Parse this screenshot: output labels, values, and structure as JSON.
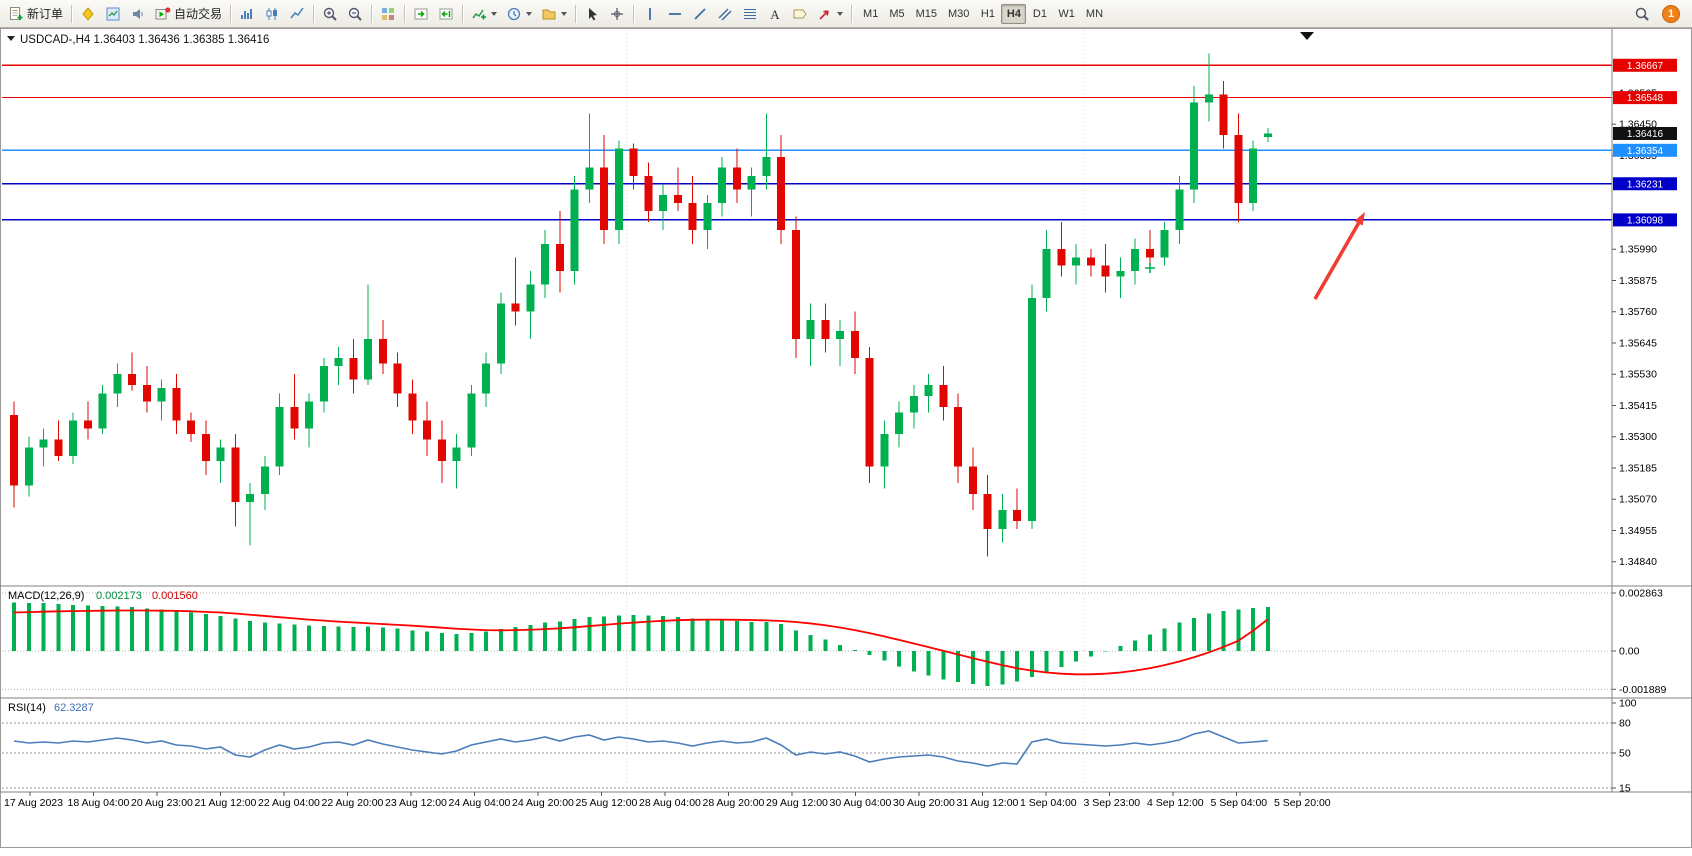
{
  "toolbar": {
    "new_order": "新订单",
    "autotrading": "自动交易",
    "timeframes": [
      "M1",
      "M5",
      "M15",
      "M30",
      "H1",
      "H4",
      "D1",
      "W1",
      "MN"
    ],
    "active_timeframe": "H4",
    "notification_count": "1"
  },
  "chart_data": {
    "type": "candlestick",
    "symbol": "USDCAD-,H4",
    "ohlc_line": {
      "open": "1.36403",
      "high": "1.36436",
      "low": "1.36385",
      "close": "1.36416"
    },
    "price_range": {
      "top": 1.3676,
      "bottom": 1.3478
    },
    "price_ticks": [
      "1.36680",
      "1.36565",
      "1.36450",
      "1.36335",
      "1.36220",
      "1.36105",
      "1.35990",
      "1.35875",
      "1.35760",
      "1.35645",
      "1.35530",
      "1.35415",
      "1.35300",
      "1.35185",
      "1.35070",
      "1.34955",
      "1.34840"
    ],
    "time_labels": [
      "17 Aug 2023",
      "18 Aug 04:00",
      "20 Aug 23:00",
      "21 Aug 12:00",
      "22 Aug 04:00",
      "22 Aug 20:00",
      "23 Aug 12:00",
      "24 Aug 04:00",
      "24 Aug 20:00",
      "25 Aug 12:00",
      "28 Aug 04:00",
      "28 Aug 20:00",
      "29 Aug 12:00",
      "30 Aug 04:00",
      "30 Aug 20:00",
      "31 Aug 12:00",
      "1 Sep 04:00",
      "3 Sep 23:00",
      "4 Sep 12:00",
      "5 Sep 04:00",
      "5 Sep 20:00"
    ],
    "hlines": [
      {
        "price": 1.36667,
        "label": "1.36667",
        "color": "#e60000",
        "width": 1.2
      },
      {
        "price": 1.36548,
        "label": "1.36548",
        "color": "#e60000",
        "width": 1.2
      },
      {
        "price": 1.36354,
        "label": "1.36354",
        "color": "#1e90ff",
        "width": 1.8
      },
      {
        "price": 1.36231,
        "label": "1.36231",
        "color": "#0000c8",
        "width": 1.6
      },
      {
        "price": 1.36098,
        "label": "1.36098",
        "color": "#0000c8",
        "width": 1.6
      }
    ],
    "current_price": {
      "value": 1.36416,
      "label": "1.36416",
      "color": "#111111"
    },
    "colors": {
      "bull": "#00b050",
      "bear": "#e10600",
      "macd_hist": "#00b050",
      "macd_signal": "#ff0000",
      "rsi": "#4a7ebb",
      "annotation": "#f03c32"
    },
    "candles": [
      [
        1.3538,
        1.3543,
        1.3504,
        1.3512
      ],
      [
        1.3512,
        1.353,
        1.3508,
        1.3526
      ],
      [
        1.3526,
        1.3533,
        1.3519,
        1.3529
      ],
      [
        1.3529,
        1.3536,
        1.3521,
        1.3523
      ],
      [
        1.3523,
        1.3539,
        1.352,
        1.3536
      ],
      [
        1.3536,
        1.3543,
        1.3529,
        1.3533
      ],
      [
        1.3533,
        1.3549,
        1.3531,
        1.3546
      ],
      [
        1.3546,
        1.3557,
        1.3541,
        1.3553
      ],
      [
        1.3553,
        1.3561,
        1.3547,
        1.3549
      ],
      [
        1.3549,
        1.3556,
        1.3539,
        1.3543
      ],
      [
        1.3543,
        1.3551,
        1.3536,
        1.3548
      ],
      [
        1.3548,
        1.3553,
        1.3531,
        1.3536
      ],
      [
        1.3536,
        1.3539,
        1.3528,
        1.3531
      ],
      [
        1.3531,
        1.3536,
        1.3516,
        1.3521
      ],
      [
        1.3521,
        1.3529,
        1.3513,
        1.3526
      ],
      [
        1.3526,
        1.3531,
        1.3497,
        1.3506
      ],
      [
        1.3506,
        1.3513,
        1.349,
        1.3509
      ],
      [
        1.3509,
        1.3523,
        1.3503,
        1.3519
      ],
      [
        1.3519,
        1.3546,
        1.3516,
        1.3541
      ],
      [
        1.3541,
        1.3553,
        1.3529,
        1.3533
      ],
      [
        1.3533,
        1.3546,
        1.3526,
        1.3543
      ],
      [
        1.3543,
        1.3559,
        1.3539,
        1.3556
      ],
      [
        1.3556,
        1.3563,
        1.3549,
        1.3559
      ],
      [
        1.3559,
        1.3566,
        1.3546,
        1.3551
      ],
      [
        1.3551,
        1.3586,
        1.3549,
        1.3566
      ],
      [
        1.3566,
        1.3573,
        1.3553,
        1.3557
      ],
      [
        1.3557,
        1.3561,
        1.3541,
        1.3546
      ],
      [
        1.3546,
        1.3551,
        1.3531,
        1.3536
      ],
      [
        1.3536,
        1.3543,
        1.3523,
        1.3529
      ],
      [
        1.3529,
        1.3536,
        1.3513,
        1.3521
      ],
      [
        1.3521,
        1.3531,
        1.3511,
        1.3526
      ],
      [
        1.3526,
        1.3549,
        1.3523,
        1.3546
      ],
      [
        1.3546,
        1.3561,
        1.3541,
        1.3557
      ],
      [
        1.3557,
        1.3583,
        1.3553,
        1.3579
      ],
      [
        1.3579,
        1.3596,
        1.3571,
        1.3576
      ],
      [
        1.3576,
        1.3591,
        1.3566,
        1.3586
      ],
      [
        1.3586,
        1.3606,
        1.3581,
        1.3601
      ],
      [
        1.3601,
        1.3613,
        1.3583,
        1.3591
      ],
      [
        1.3591,
        1.3626,
        1.3586,
        1.3621
      ],
      [
        1.3621,
        1.3649,
        1.3616,
        1.3629
      ],
      [
        1.3629,
        1.3641,
        1.3601,
        1.3606
      ],
      [
        1.3606,
        1.3639,
        1.3601,
        1.3636
      ],
      [
        1.3636,
        1.3638,
        1.3621,
        1.3626
      ],
      [
        1.3626,
        1.3631,
        1.3609,
        1.3613
      ],
      [
        1.3613,
        1.3623,
        1.3606,
        1.3619
      ],
      [
        1.3619,
        1.3629,
        1.3613,
        1.3616
      ],
      [
        1.3616,
        1.3626,
        1.3601,
        1.3606
      ],
      [
        1.3606,
        1.3619,
        1.3599,
        1.3616
      ],
      [
        1.3616,
        1.3633,
        1.3611,
        1.3629
      ],
      [
        1.3629,
        1.3636,
        1.3616,
        1.3621
      ],
      [
        1.3621,
        1.3629,
        1.3611,
        1.3626
      ],
      [
        1.3626,
        1.3649,
        1.3621,
        1.3633
      ],
      [
        1.3633,
        1.3641,
        1.3601,
        1.3606
      ],
      [
        1.3606,
        1.3611,
        1.3559,
        1.3566
      ],
      [
        1.3566,
        1.3579,
        1.3556,
        1.3573
      ],
      [
        1.3573,
        1.3579,
        1.3561,
        1.3566
      ],
      [
        1.3566,
        1.3573,
        1.3556,
        1.3569
      ],
      [
        1.3569,
        1.3576,
        1.3553,
        1.3559
      ],
      [
        1.3559,
        1.3563,
        1.3513,
        1.3519
      ],
      [
        1.3519,
        1.3536,
        1.3511,
        1.3531
      ],
      [
        1.3531,
        1.3543,
        1.3526,
        1.3539
      ],
      [
        1.3539,
        1.3549,
        1.3533,
        1.3545
      ],
      [
        1.3545,
        1.3553,
        1.3539,
        1.3549
      ],
      [
        1.3549,
        1.3556,
        1.3536,
        1.3541
      ],
      [
        1.3541,
        1.3546,
        1.3513,
        1.3519
      ],
      [
        1.3519,
        1.3526,
        1.3503,
        1.3509
      ],
      [
        1.3509,
        1.3516,
        1.3486,
        1.3496
      ],
      [
        1.3496,
        1.3509,
        1.3491,
        1.3503
      ],
      [
        1.3503,
        1.3511,
        1.3496,
        1.3499
      ],
      [
        1.3499,
        1.3586,
        1.3496,
        1.3581
      ],
      [
        1.3581,
        1.3606,
        1.3576,
        1.3599
      ],
      [
        1.3599,
        1.3609,
        1.3589,
        1.3593
      ],
      [
        1.3593,
        1.3601,
        1.3586,
        1.3596
      ],
      [
        1.3596,
        1.3599,
        1.3589,
        1.3593
      ],
      [
        1.3593,
        1.3601,
        1.3583,
        1.3589
      ],
      [
        1.3589,
        1.3596,
        1.3581,
        1.3591
      ],
      [
        1.3591,
        1.3603,
        1.3586,
        1.3599
      ],
      [
        1.3599,
        1.3606,
        1.3591,
        1.3596
      ],
      [
        1.3596,
        1.3609,
        1.3593,
        1.3606
      ],
      [
        1.3606,
        1.3626,
        1.3601,
        1.3621
      ],
      [
        1.3621,
        1.3659,
        1.3616,
        1.3653
      ],
      [
        1.3653,
        1.3671,
        1.3646,
        1.3656
      ],
      [
        1.3656,
        1.3661,
        1.3636,
        1.3641
      ],
      [
        1.3641,
        1.3649,
        1.3609,
        1.3616
      ],
      [
        1.3616,
        1.3639,
        1.3613,
        1.3636
      ],
      [
        1.36403,
        1.36436,
        1.36385,
        1.36416
      ]
    ],
    "macd": {
      "label": "MACD(12,26,9)",
      "main_value": "0.002173",
      "signal_value": "0.001560",
      "scale_max": "0.002863",
      "scale_zero": "0.00",
      "scale_min": "-0.001889",
      "max": 0.002863,
      "min": -0.001889,
      "histogram": [
        0.0024,
        0.00238,
        0.00236,
        0.00232,
        0.00228,
        0.00224,
        0.00222,
        0.0022,
        0.00216,
        0.0021,
        0.00205,
        0.00198,
        0.0019,
        0.00182,
        0.00174,
        0.0016,
        0.00148,
        0.0014,
        0.00136,
        0.0013,
        0.00126,
        0.00124,
        0.00122,
        0.00118,
        0.0012,
        0.00116,
        0.0011,
        0.00102,
        0.00096,
        0.00088,
        0.00084,
        0.00088,
        0.00096,
        0.00108,
        0.00118,
        0.00128,
        0.0014,
        0.00146,
        0.00158,
        0.00168,
        0.0017,
        0.00176,
        0.00178,
        0.00176,
        0.00172,
        0.00168,
        0.0016,
        0.00156,
        0.00152,
        0.00148,
        0.00144,
        0.00142,
        0.00134,
        0.001,
        0.0008,
        0.00058,
        0.0003,
        6e-05,
        -0.0002,
        -0.00048,
        -0.00076,
        -0.001,
        -0.00122,
        -0.0014,
        -0.00154,
        -0.00164,
        -0.00172,
        -0.00166,
        -0.0015,
        -0.00128,
        -0.00104,
        -0.00078,
        -0.00052,
        -0.00026,
        -2e-05,
        0.00024,
        0.00052,
        0.00082,
        0.00112,
        0.0014,
        0.00164,
        0.00184,
        0.00198,
        0.00206,
        0.00212,
        0.002173
      ],
      "signal": [
        0.0019,
        0.00192,
        0.00194,
        0.00196,
        0.00197,
        0.00198,
        0.00199,
        0.002,
        0.002,
        0.002,
        0.00199,
        0.00198,
        0.00196,
        0.00193,
        0.0019,
        0.00185,
        0.00179,
        0.00173,
        0.00167,
        0.00161,
        0.00155,
        0.0015,
        0.00145,
        0.00141,
        0.00137,
        0.00133,
        0.00129,
        0.00125,
        0.0012,
        0.00115,
        0.0011,
        0.00106,
        0.00103,
        0.00102,
        0.00103,
        0.00105,
        0.00108,
        0.00112,
        0.00117,
        0.00123,
        0.00129,
        0.00135,
        0.0014,
        0.00145,
        0.00149,
        0.00152,
        0.00154,
        0.00155,
        0.00155,
        0.00154,
        0.00153,
        0.00151,
        0.00148,
        0.00143,
        0.00136,
        0.00127,
        0.00116,
        0.00103,
        0.00088,
        0.00072,
        0.00055,
        0.00037,
        0.00019,
        1e-05,
        -0.00017,
        -0.00035,
        -0.00053,
        -0.0007,
        -0.00085,
        -0.00097,
        -0.00106,
        -0.00112,
        -0.00115,
        -0.00115,
        -0.00112,
        -0.00106,
        -0.00097,
        -0.00085,
        -0.0007,
        -0.00052,
        -0.00031,
        -7e-05,
        0.0002,
        0.0005,
        0.001,
        0.00156
      ]
    },
    "rsi": {
      "label": "RSI(14)",
      "value": "62.3287",
      "scale": [
        "100",
        "80",
        "50",
        "15"
      ],
      "levels": [
        80,
        50,
        15
      ],
      "values": [
        62,
        60,
        61,
        60,
        62,
        61,
        63,
        65,
        63,
        60,
        62,
        58,
        57,
        54,
        56,
        48,
        46,
        53,
        58,
        54,
        56,
        60,
        61,
        58,
        63,
        59,
        56,
        53,
        51,
        49,
        52,
        58,
        61,
        64,
        61,
        63,
        66,
        62,
        66,
        68,
        63,
        66,
        64,
        61,
        62,
        60,
        57,
        60,
        62,
        60,
        61,
        65,
        58,
        48,
        51,
        49,
        51,
        47,
        41,
        44,
        46,
        47,
        48,
        46,
        42,
        40,
        37,
        40,
        39,
        61,
        64,
        60,
        59,
        58,
        57,
        58,
        60,
        58,
        60,
        63,
        69,
        72,
        66,
        60,
        61,
        62.3
      ]
    },
    "annotation_arrow": {
      "from": [
        1315,
        271
      ],
      "to": [
        1365,
        184
      ],
      "color": "#f03c32"
    }
  }
}
